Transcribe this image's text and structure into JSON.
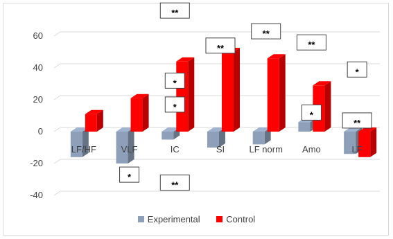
{
  "chart_data": {
    "type": "bar",
    "categories": [
      "LF/HF",
      "VLF",
      "IC",
      "SI",
      "LF norm",
      "Amo",
      "LF"
    ],
    "series": [
      {
        "name": "Experimental",
        "color": "#8ea0b9",
        "values": [
          -16,
          -20,
          -5,
          -10,
          -8,
          6,
          -14
        ]
      },
      {
        "name": "Control",
        "color": "#ff0000",
        "values": [
          11,
          21,
          44,
          50,
          46,
          29,
          -16
        ]
      }
    ],
    "yticks": [
      "60",
      "40",
      "20",
      "0",
      "-20",
      "-40"
    ],
    "ylim": [
      -40,
      60
    ],
    "grid": true,
    "legend_position": "bottom",
    "annotations": [
      {
        "text": "**",
        "cat": 2,
        "y": 76
      },
      {
        "text": "*",
        "cat": 1,
        "y": -27
      },
      {
        "text": "**",
        "cat": 2,
        "y": -32
      },
      {
        "text": "*",
        "cat": 2,
        "y": 32
      },
      {
        "text": "*",
        "cat": 2,
        "y": 17
      },
      {
        "text": "**",
        "cat": 3,
        "y": 54
      },
      {
        "text": "**",
        "cat": 4,
        "y": 63
      },
      {
        "text": "**",
        "cat": 5,
        "y": 56
      },
      {
        "text": "*",
        "cat": 5,
        "y": 12
      },
      {
        "text": "**",
        "cat": 6,
        "y": 7
      },
      {
        "text": "*",
        "cat": 6,
        "y": 39
      }
    ]
  }
}
